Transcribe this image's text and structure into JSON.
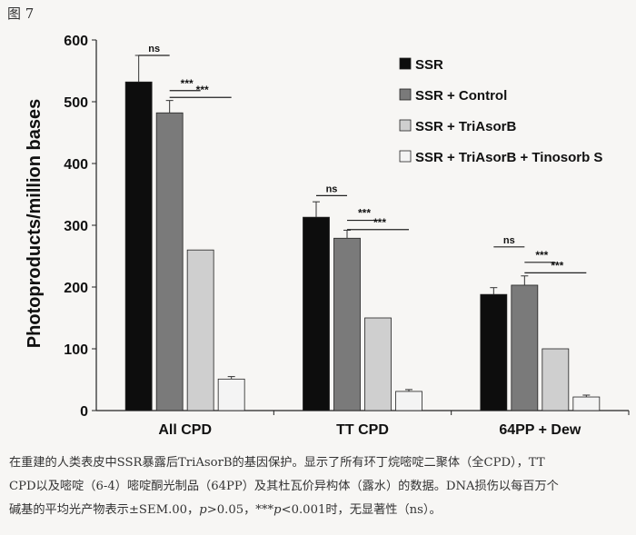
{
  "figure_label": "图 7",
  "caption": {
    "line1": "在重建的人类表皮中SSR暴露后TriAsorB的基因保护。显示了所有环丁烷嘧啶二聚体（全CPD），TT",
    "line2": "CPD以及嘧啶（6-4）嘧啶酮光制品（64PP）及其杜瓦价异构体（露水）的数据。DNA损伤以每百万个",
    "line3_a": "碱基的平均光产物表示±SEM.00，",
    "line3_p1": "p",
    "line3_b": ">0.05，***",
    "line3_p2": "p",
    "line3_c": "<0.001时，无显著性（ns）。"
  },
  "chart_data": {
    "type": "bar",
    "ylabel": "Photoproducts/million bases",
    "xlabel": "",
    "ylim": [
      0,
      600
    ],
    "yticks": [
      0,
      100,
      200,
      300,
      400,
      500,
      600
    ],
    "categories": [
      "All CPD",
      "TT CPD",
      "64PP + Dew"
    ],
    "series": [
      {
        "name": "SSR",
        "color": "#0d0d0d",
        "values": [
          532,
          313,
          188
        ],
        "errors": [
          43,
          25,
          11
        ]
      },
      {
        "name": "SSR + Control",
        "color": "#7a7a7a",
        "values": [
          482,
          279,
          203
        ],
        "errors": [
          20,
          13,
          15
        ]
      },
      {
        "name": "SSR + TriAsorB",
        "color": "#cfcfcf",
        "values": [
          260,
          150,
          100
        ],
        "errors": [
          0,
          0,
          0
        ]
      },
      {
        "name": "SSR + TriAsorB + Tinosorb S",
        "color": "#f4f4f4",
        "values": [
          51,
          31,
          22
        ],
        "errors": [
          4,
          3,
          3
        ]
      }
    ],
    "legend_position": "top-right",
    "significance": [
      {
        "category": 0,
        "from": 0,
        "to": 1,
        "label": "ns",
        "y": 575
      },
      {
        "category": 0,
        "from": 1,
        "to": 2,
        "label": "***",
        "y": 518
      },
      {
        "category": 0,
        "from": 1,
        "to": 3,
        "label": "***",
        "y": 507
      },
      {
        "category": 1,
        "from": 0,
        "to": 1,
        "label": "ns",
        "y": 348
      },
      {
        "category": 1,
        "from": 1,
        "to": 2,
        "label": "***",
        "y": 308
      },
      {
        "category": 1,
        "from": 1,
        "to": 3,
        "label": "***",
        "y": 293
      },
      {
        "category": 2,
        "from": 0,
        "to": 1,
        "label": "ns",
        "y": 265
      },
      {
        "category": 2,
        "from": 1,
        "to": 2,
        "label": "***",
        "y": 240
      },
      {
        "category": 2,
        "from": 1,
        "to": 3,
        "label": "***",
        "y": 223
      }
    ]
  }
}
